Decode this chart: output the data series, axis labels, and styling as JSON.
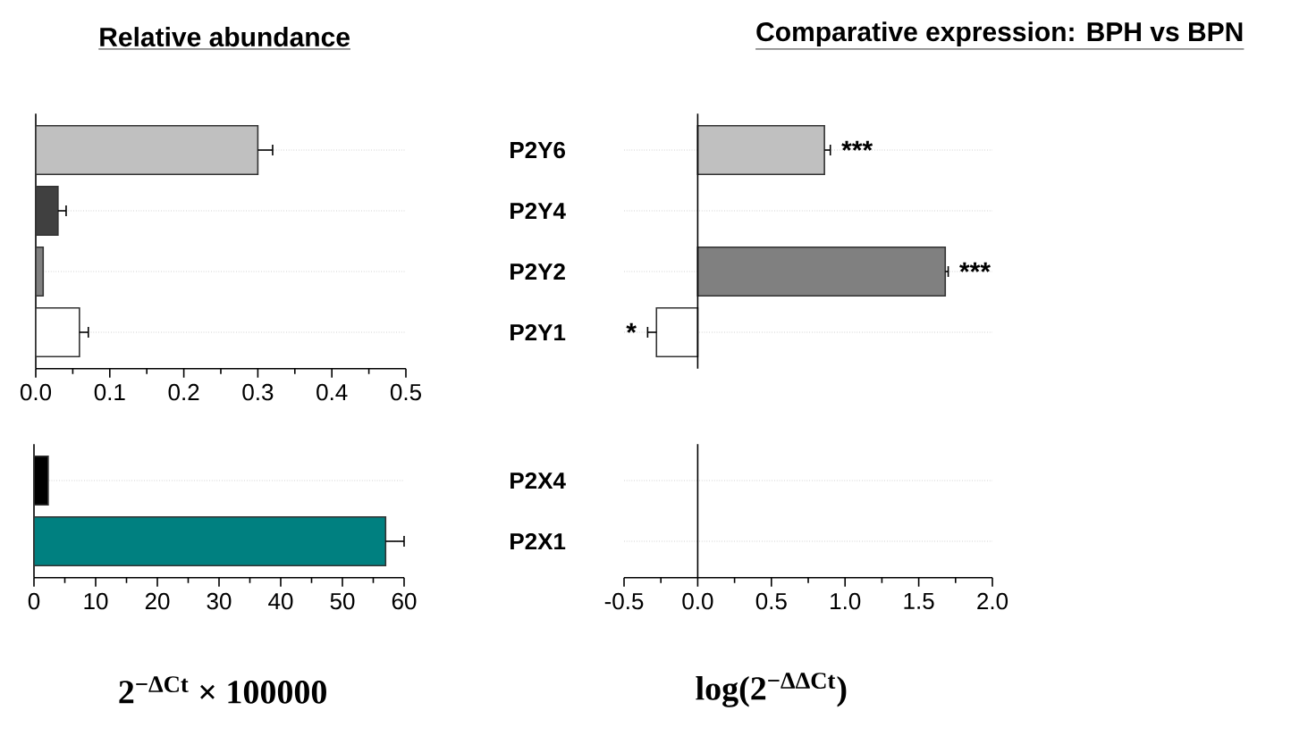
{
  "chart_data": [
    {
      "type": "bar",
      "orientation": "horizontal",
      "title": "Relative abundance",
      "categories": [
        null,
        null,
        null,
        null
      ],
      "values": [
        0.3,
        0.03,
        0.01,
        0.059
      ],
      "errors": [
        [
          0.3,
          0.32
        ],
        [
          0.03,
          0.041
        ],
        null,
        [
          0.059,
          0.071
        ]
      ],
      "colors": [
        "#c0c0c0",
        "#404040",
        "#808080",
        "#ffffff"
      ],
      "xlim": [
        0,
        0.5
      ],
      "xticks": [
        {
          "value": 0,
          "label": "0.0"
        },
        0.1,
        0.2,
        0.3,
        0.4,
        0.5
      ],
      "grid": "y",
      "tick_labels": "x"
    },
    {
      "type": "bar",
      "orientation": "horizontal",
      "categories": [
        null,
        null
      ],
      "values": [
        2.3,
        57
      ],
      "errors": [
        null,
        [
          57,
          60
        ]
      ],
      "colors": [
        "#000000",
        "#008080"
      ],
      "xlim": [
        0,
        60
      ],
      "xticks": [
        0,
        10,
        20,
        30,
        40,
        50,
        60
      ],
      "xlabel": "2$^{−ΔCt}$ × 100000",
      "grid": "y",
      "tick_labels": "x"
    },
    {
      "type": "bar",
      "orientation": "horizontal",
      "title": "Comparative expression: BPH vs BPN",
      "categories": [
        "P2Y6",
        "P2Y4",
        "P2Y2",
        "P2Y1"
      ],
      "values": [
        0.86,
        null,
        1.68,
        -0.28
      ],
      "errors": [
        [
          0.86,
          0.9
        ],
        null,
        [
          1.68,
          1.7
        ],
        [
          -0.34,
          -0.28
        ]
      ],
      "colors": [
        "#c0c0c0",
        "#808080",
        "#808080",
        "#ffffff"
      ],
      "xlim": [
        -0.5,
        2.0
      ],
      "grid": "y",
      "tick_labels": "y",
      "ref_lines": [
        {
          "axis": "x",
          "value": 0
        }
      ],
      "annotations": [
        {
          "text": "***",
          "x": 0.9,
          "y": "P2Y6"
        },
        {
          "text": "***",
          "x": 1.7,
          "y": "P2Y2"
        },
        {
          "text": "*",
          "x": -0.34,
          "y": "P2Y1"
        }
      ]
    },
    {
      "type": "bar",
      "orientation": "horizontal",
      "categories": [
        "P2X4",
        "P2X1"
      ],
      "values": [
        null,
        null
      ],
      "xlim": [
        -0.5,
        2.0
      ],
      "xticks": [
        {
          "value": -0.5,
          "label": "-0.5"
        },
        {
          "value": 0,
          "label": "0.0"
        },
        0.5,
        {
          "value": 1,
          "label": "1.0"
        },
        1.5,
        {
          "value": 2,
          "label": "2.0"
        }
      ],
      "xlabel": "log(2$^{−ΔΔCt}$)",
      "grid": "y",
      "ref_lines": [
        {
          "axis": "x",
          "value": 0
        }
      ]
    }
  ]
}
